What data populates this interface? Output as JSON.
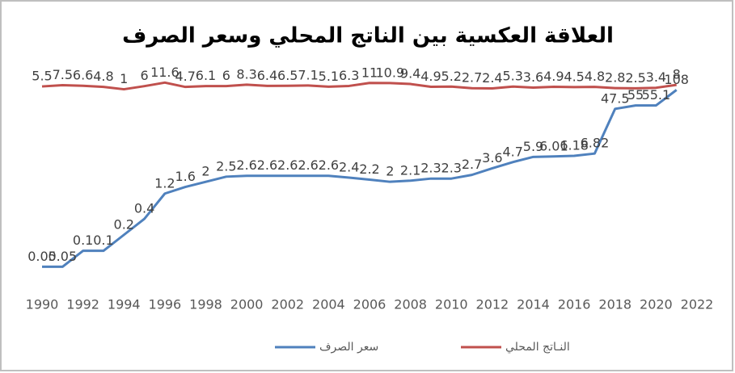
{
  "chart_data": {
    "type": "line",
    "title": "العلاقة العكسية بين الناتج المحلي وسعر الصرف",
    "x": [
      1990,
      1991,
      1992,
      1993,
      1994,
      1995,
      1996,
      1997,
      1998,
      1999,
      2000,
      2001,
      2002,
      2003,
      2004,
      2005,
      2006,
      2007,
      2008,
      2009,
      2010,
      2011,
      2012,
      2013,
      2014,
      2015,
      2016,
      2017,
      2018,
      2019,
      2020,
      2021
    ],
    "xlim": [
      1990,
      2022
    ],
    "xticks": [
      1990,
      1992,
      1994,
      1996,
      1998,
      2000,
      2002,
      2004,
      2006,
      2008,
      2010,
      2012,
      2014,
      2016,
      2018,
      2020,
      2022
    ],
    "log_scale": true,
    "ylim": [
      0.03,
      150
    ],
    "y2lim": [
      -300,
      12
    ],
    "series": [
      {
        "name": "سعر الصرف",
        "color": "#4f81bd",
        "values": [
          0.05,
          0.05,
          0.1,
          0.1,
          0.2,
          0.4,
          1.2,
          1.6,
          2,
          2.5,
          2.6,
          2.6,
          2.6,
          2.6,
          2.6,
          2.4,
          2.2,
          2,
          2.1,
          2.3,
          2.3,
          2.7,
          3.6,
          4.7,
          5.9,
          6.01,
          6.18,
          6.82,
          47.5,
          55,
          55.1,
          108
        ]
      },
      {
        "name": "النـاتج المحلي",
        "color": "#c0504d",
        "axis": "y2",
        "values": [
          5.5,
          7.5,
          6.6,
          4.8,
          1,
          6,
          11.6,
          4.7,
          6.1,
          6,
          8.3,
          6.4,
          6.5,
          7.1,
          5.1,
          6.3,
          11,
          10.9,
          9.4,
          4.9,
          5.2,
          2.7,
          2.4,
          5.3,
          3.6,
          4.9,
          4.5,
          4.8,
          2.8,
          2.5,
          3.4,
          8
        ]
      }
    ]
  }
}
